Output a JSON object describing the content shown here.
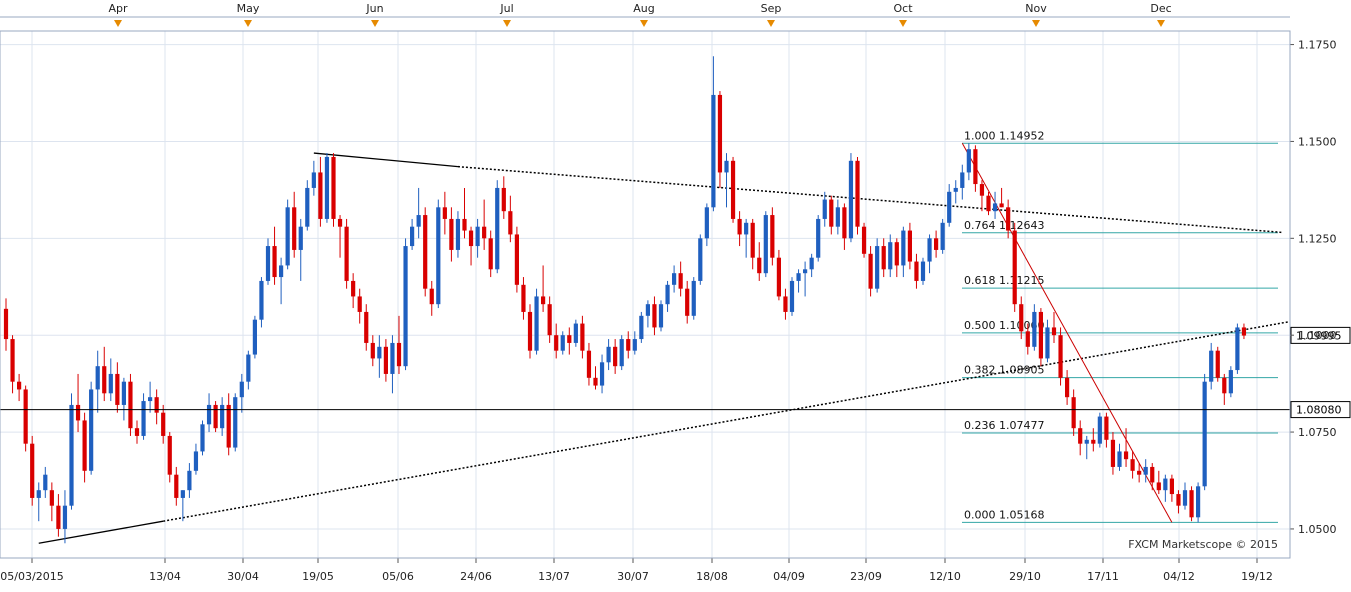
{
  "chart_data": {
    "type": "candlestick",
    "title": "",
    "watermark": "FXCM Marketscope © 2015",
    "ylim": [
      1.0425,
      1.1785
    ],
    "y_ticks": [
      "1.0500",
      "1.0750",
      "1.1000",
      "1.1250",
      "1.1500",
      "1.1750"
    ],
    "x_ticks": [
      "05/03/2015",
      "13/04",
      "30/04",
      "19/05",
      "05/06",
      "24/06",
      "13/07",
      "30/07",
      "18/08",
      "04/09",
      "23/09",
      "12/10",
      "29/10",
      "17/11",
      "04/12",
      "19/12"
    ],
    "months": [
      "Apr",
      "May",
      "Jun",
      "Jul",
      "Aug",
      "Sep",
      "Oct",
      "Nov",
      "Dec"
    ],
    "grid": true,
    "colors": {
      "bull": "#1f5fbf",
      "bear": "#d90000",
      "fib": "#33a6a6",
      "price_line": "#000000",
      "trend": "#000000",
      "red_trend": "#cc0000",
      "tag_bg": "#ffffff",
      "month_marker": "#e68a00",
      "grid": "#dde4ef"
    },
    "price_tags": [
      {
        "label": "1.09995",
        "value": 1.09995
      },
      {
        "label": "1.08080",
        "value": 1.0808
      }
    ],
    "fibonacci": [
      {
        "ratio": "1.000",
        "value": 1.14952,
        "label": "1.000 1.14952"
      },
      {
        "ratio": "0.764",
        "value": 1.12643,
        "label": "0.764 1.12643"
      },
      {
        "ratio": "0.618",
        "value": 1.11215,
        "label": "0.618 1.11215"
      },
      {
        "ratio": "0.500",
        "value": 1.1006,
        "label": "0.500 1.10060"
      },
      {
        "ratio": "0.382",
        "value": 1.08905,
        "label": "0.382 1.08905"
      },
      {
        "ratio": "0.236",
        "value": 1.07477,
        "label": "0.236 1.07477"
      },
      {
        "ratio": "0.000",
        "value": 1.05168,
        "label": "0.000 1.05168"
      }
    ],
    "candles": [
      [
        1.1068,
        1.1095,
        1.096,
        1.099
      ],
      [
        1.099,
        1.1,
        1.085,
        1.088
      ],
      [
        1.088,
        1.09,
        1.083,
        1.086
      ],
      [
        1.086,
        1.087,
        1.07,
        1.072
      ],
      [
        1.072,
        1.074,
        1.056,
        1.058
      ],
      [
        1.058,
        1.062,
        1.052,
        1.06
      ],
      [
        1.06,
        1.066,
        1.058,
        1.064
      ],
      [
        1.06,
        1.062,
        1.052,
        1.056
      ],
      [
        1.056,
        1.059,
        1.048,
        1.05
      ],
      [
        1.05,
        1.06,
        1.0463,
        1.056
      ],
      [
        1.056,
        1.085,
        1.055,
        1.082
      ],
      [
        1.082,
        1.09,
        1.075,
        1.078
      ],
      [
        1.078,
        1.08,
        1.062,
        1.065
      ],
      [
        1.065,
        1.088,
        1.064,
        1.086
      ],
      [
        1.086,
        1.096,
        1.08,
        1.092
      ],
      [
        1.092,
        1.097,
        1.083,
        1.085
      ],
      [
        1.085,
        1.094,
        1.083,
        1.09
      ],
      [
        1.09,
        1.093,
        1.08,
        1.082
      ],
      [
        1.082,
        1.089,
        1.078,
        1.088
      ],
      [
        1.088,
        1.09,
        1.074,
        1.076
      ],
      [
        1.076,
        1.078,
        1.072,
        1.074
      ],
      [
        1.074,
        1.085,
        1.073,
        1.083
      ],
      [
        1.083,
        1.088,
        1.08,
        1.084
      ],
      [
        1.084,
        1.086,
        1.077,
        1.08
      ],
      [
        1.08,
        1.082,
        1.072,
        1.074
      ],
      [
        1.074,
        1.075,
        1.062,
        1.064
      ],
      [
        1.064,
        1.066,
        1.056,
        1.058
      ],
      [
        1.058,
        1.06,
        1.052,
        1.06
      ],
      [
        1.06,
        1.067,
        1.058,
        1.065
      ],
      [
        1.065,
        1.072,
        1.064,
        1.07
      ],
      [
        1.07,
        1.078,
        1.069,
        1.077
      ],
      [
        1.077,
        1.085,
        1.075,
        1.082
      ],
      [
        1.082,
        1.083,
        1.075,
        1.076
      ],
      [
        1.076,
        1.084,
        1.074,
        1.082
      ],
      [
        1.082,
        1.085,
        1.069,
        1.071
      ],
      [
        1.071,
        1.085,
        1.07,
        1.084
      ],
      [
        1.084,
        1.09,
        1.08,
        1.088
      ],
      [
        1.088,
        1.096,
        1.086,
        1.095
      ],
      [
        1.095,
        1.105,
        1.094,
        1.104
      ],
      [
        1.104,
        1.115,
        1.102,
        1.114
      ],
      [
        1.114,
        1.125,
        1.113,
        1.123
      ],
      [
        1.123,
        1.128,
        1.113,
        1.115
      ],
      [
        1.115,
        1.12,
        1.108,
        1.118
      ],
      [
        1.118,
        1.135,
        1.117,
        1.133
      ],
      [
        1.133,
        1.137,
        1.12,
        1.122
      ],
      [
        1.122,
        1.13,
        1.114,
        1.128
      ],
      [
        1.128,
        1.14,
        1.127,
        1.138
      ],
      [
        1.138,
        1.145,
        1.136,
        1.142
      ],
      [
        1.142,
        1.146,
        1.128,
        1.13
      ],
      [
        1.13,
        1.147,
        1.129,
        1.146
      ],
      [
        1.146,
        1.147,
        1.128,
        1.13
      ],
      [
        1.13,
        1.131,
        1.12,
        1.128
      ],
      [
        1.128,
        1.13,
        1.112,
        1.114
      ],
      [
        1.114,
        1.116,
        1.107,
        1.11
      ],
      [
        1.11,
        1.112,
        1.103,
        1.106
      ],
      [
        1.106,
        1.108,
        1.096,
        1.098
      ],
      [
        1.098,
        1.1,
        1.092,
        1.094
      ],
      [
        1.094,
        1.1,
        1.089,
        1.097
      ],
      [
        1.097,
        1.099,
        1.088,
        1.09
      ],
      [
        1.09,
        1.1,
        1.085,
        1.098
      ],
      [
        1.098,
        1.105,
        1.09,
        1.092
      ],
      [
        1.092,
        1.125,
        1.091,
        1.123
      ],
      [
        1.123,
        1.13,
        1.122,
        1.128
      ],
      [
        1.128,
        1.138,
        1.125,
        1.131
      ],
      [
        1.131,
        1.133,
        1.11,
        1.112
      ],
      [
        1.112,
        1.114,
        1.105,
        1.108
      ],
      [
        1.108,
        1.135,
        1.107,
        1.133
      ],
      [
        1.133,
        1.137,
        1.126,
        1.13
      ],
      [
        1.13,
        1.133,
        1.119,
        1.122
      ],
      [
        1.122,
        1.132,
        1.12,
        1.13
      ],
      [
        1.13,
        1.138,
        1.125,
        1.127
      ],
      [
        1.127,
        1.128,
        1.118,
        1.123
      ],
      [
        1.123,
        1.13,
        1.12,
        1.128
      ],
      [
        1.128,
        1.135,
        1.122,
        1.125
      ],
      [
        1.125,
        1.127,
        1.115,
        1.117
      ],
      [
        1.117,
        1.14,
        1.116,
        1.138
      ],
      [
        1.138,
        1.141,
        1.13,
        1.132
      ],
      [
        1.132,
        1.136,
        1.124,
        1.126
      ],
      [
        1.126,
        1.128,
        1.111,
        1.113
      ],
      [
        1.113,
        1.115,
        1.104,
        1.106
      ],
      [
        1.106,
        1.108,
        1.094,
        1.096
      ],
      [
        1.096,
        1.112,
        1.095,
        1.11
      ],
      [
        1.11,
        1.118,
        1.106,
        1.108
      ],
      [
        1.108,
        1.11,
        1.098,
        1.1
      ],
      [
        1.1,
        1.103,
        1.094,
        1.096
      ],
      [
        1.096,
        1.101,
        1.095,
        1.1
      ],
      [
        1.1,
        1.102,
        1.095,
        1.098
      ],
      [
        1.098,
        1.104,
        1.097,
        1.103
      ],
      [
        1.103,
        1.105,
        1.094,
        1.096
      ],
      [
        1.096,
        1.098,
        1.087,
        1.089
      ],
      [
        1.089,
        1.092,
        1.086,
        1.087
      ],
      [
        1.087,
        1.095,
        1.085,
        1.093
      ],
      [
        1.093,
        1.099,
        1.091,
        1.097
      ],
      [
        1.097,
        1.099,
        1.09,
        1.092
      ],
      [
        1.092,
        1.1,
        1.091,
        1.099
      ],
      [
        1.099,
        1.101,
        1.094,
        1.096
      ],
      [
        1.096,
        1.101,
        1.095,
        1.099
      ],
      [
        1.099,
        1.106,
        1.098,
        1.105
      ],
      [
        1.105,
        1.109,
        1.102,
        1.108
      ],
      [
        1.108,
        1.11,
        1.1,
        1.102
      ],
      [
        1.102,
        1.109,
        1.101,
        1.108
      ],
      [
        1.108,
        1.114,
        1.106,
        1.113
      ],
      [
        1.113,
        1.118,
        1.111,
        1.116
      ],
      [
        1.116,
        1.119,
        1.11,
        1.112
      ],
      [
        1.112,
        1.114,
        1.103,
        1.105
      ],
      [
        1.105,
        1.115,
        1.104,
        1.114
      ],
      [
        1.114,
        1.126,
        1.113,
        1.125
      ],
      [
        1.125,
        1.134,
        1.123,
        1.133
      ],
      [
        1.133,
        1.172,
        1.132,
        1.162
      ],
      [
        1.162,
        1.163,
        1.138,
        1.142
      ],
      [
        1.142,
        1.147,
        1.133,
        1.145
      ],
      [
        1.145,
        1.146,
        1.129,
        1.13
      ],
      [
        1.13,
        1.132,
        1.123,
        1.126
      ],
      [
        1.126,
        1.13,
        1.12,
        1.129
      ],
      [
        1.129,
        1.13,
        1.117,
        1.12
      ],
      [
        1.12,
        1.124,
        1.114,
        1.116
      ],
      [
        1.116,
        1.132,
        1.115,
        1.131
      ],
      [
        1.131,
        1.133,
        1.118,
        1.12
      ],
      [
        1.12,
        1.122,
        1.109,
        1.11
      ],
      [
        1.11,
        1.112,
        1.104,
        1.106
      ],
      [
        1.106,
        1.115,
        1.105,
        1.114
      ],
      [
        1.114,
        1.117,
        1.111,
        1.116
      ],
      [
        1.116,
        1.119,
        1.11,
        1.117
      ],
      [
        1.117,
        1.121,
        1.115,
        1.12
      ],
      [
        1.12,
        1.131,
        1.119,
        1.13
      ],
      [
        1.13,
        1.137,
        1.128,
        1.135
      ],
      [
        1.135,
        1.136,
        1.126,
        1.128
      ],
      [
        1.128,
        1.135,
        1.126,
        1.133
      ],
      [
        1.133,
        1.134,
        1.122,
        1.125
      ],
      [
        1.125,
        1.147,
        1.124,
        1.145
      ],
      [
        1.145,
        1.146,
        1.126,
        1.128
      ],
      [
        1.128,
        1.129,
        1.12,
        1.121
      ],
      [
        1.121,
        1.123,
        1.11,
        1.112
      ],
      [
        1.112,
        1.125,
        1.111,
        1.123
      ],
      [
        1.123,
        1.125,
        1.115,
        1.117
      ],
      [
        1.117,
        1.126,
        1.115,
        1.124
      ],
      [
        1.124,
        1.125,
        1.115,
        1.118
      ],
      [
        1.118,
        1.128,
        1.115,
        1.127
      ],
      [
        1.127,
        1.129,
        1.117,
        1.119
      ],
      [
        1.119,
        1.121,
        1.112,
        1.114
      ],
      [
        1.114,
        1.12,
        1.113,
        1.119
      ],
      [
        1.119,
        1.126,
        1.116,
        1.125
      ],
      [
        1.125,
        1.127,
        1.12,
        1.122
      ],
      [
        1.122,
        1.13,
        1.121,
        1.129
      ],
      [
        1.129,
        1.139,
        1.128,
        1.137
      ],
      [
        1.137,
        1.14,
        1.134,
        1.138
      ],
      [
        1.138,
        1.144,
        1.135,
        1.142
      ],
      [
        1.142,
        1.1495,
        1.14,
        1.148
      ],
      [
        1.148,
        1.149,
        1.137,
        1.139
      ],
      [
        1.139,
        1.14,
        1.132,
        1.136
      ],
      [
        1.136,
        1.137,
        1.131,
        1.132
      ],
      [
        1.132,
        1.137,
        1.13,
        1.134
      ],
      [
        1.134,
        1.138,
        1.133,
        1.133
      ],
      [
        1.133,
        1.135,
        1.125,
        1.127
      ],
      [
        1.127,
        1.129,
        1.106,
        1.108
      ],
      [
        1.108,
        1.11,
        1.099,
        1.101
      ],
      [
        1.101,
        1.103,
        1.095,
        1.097
      ],
      [
        1.097,
        1.108,
        1.096,
        1.106
      ],
      [
        1.106,
        1.107,
        1.092,
        1.094
      ],
      [
        1.094,
        1.104,
        1.093,
        1.102
      ],
      [
        1.102,
        1.106,
        1.098,
        1.1
      ],
      [
        1.1,
        1.102,
        1.087,
        1.089
      ],
      [
        1.089,
        1.091,
        1.082,
        1.084
      ],
      [
        1.084,
        1.086,
        1.074,
        1.076
      ],
      [
        1.076,
        1.078,
        1.069,
        1.072
      ],
      [
        1.072,
        1.074,
        1.068,
        1.073
      ],
      [
        1.073,
        1.076,
        1.07,
        1.072
      ],
      [
        1.072,
        1.08,
        1.071,
        1.079
      ],
      [
        1.079,
        1.08,
        1.071,
        1.073
      ],
      [
        1.073,
        1.075,
        1.064,
        1.066
      ],
      [
        1.066,
        1.072,
        1.065,
        1.07
      ],
      [
        1.07,
        1.076,
        1.066,
        1.068
      ],
      [
        1.068,
        1.07,
        1.063,
        1.065
      ],
      [
        1.065,
        1.067,
        1.062,
        1.064
      ],
      [
        1.064,
        1.068,
        1.062,
        1.066
      ],
      [
        1.066,
        1.067,
        1.06,
        1.062
      ],
      [
        1.062,
        1.065,
        1.059,
        1.06
      ],
      [
        1.06,
        1.064,
        1.057,
        1.063
      ],
      [
        1.063,
        1.064,
        1.057,
        1.059
      ],
      [
        1.059,
        1.06,
        1.054,
        1.056
      ],
      [
        1.056,
        1.062,
        1.055,
        1.06
      ],
      [
        1.06,
        1.061,
        1.052,
        1.053
      ],
      [
        1.053,
        1.062,
        1.0517,
        1.061
      ],
      [
        1.061,
        1.09,
        1.06,
        1.088
      ],
      [
        1.088,
        1.098,
        1.086,
        1.096
      ],
      [
        1.096,
        1.097,
        1.088,
        1.089
      ],
      [
        1.089,
        1.09,
        1.082,
        1.085
      ],
      [
        1.085,
        1.092,
        1.084,
        1.091
      ],
      [
        1.091,
        1.103,
        1.09,
        1.102
      ],
      [
        1.102,
        1.103,
        1.099,
        1.0999
      ]
    ]
  }
}
